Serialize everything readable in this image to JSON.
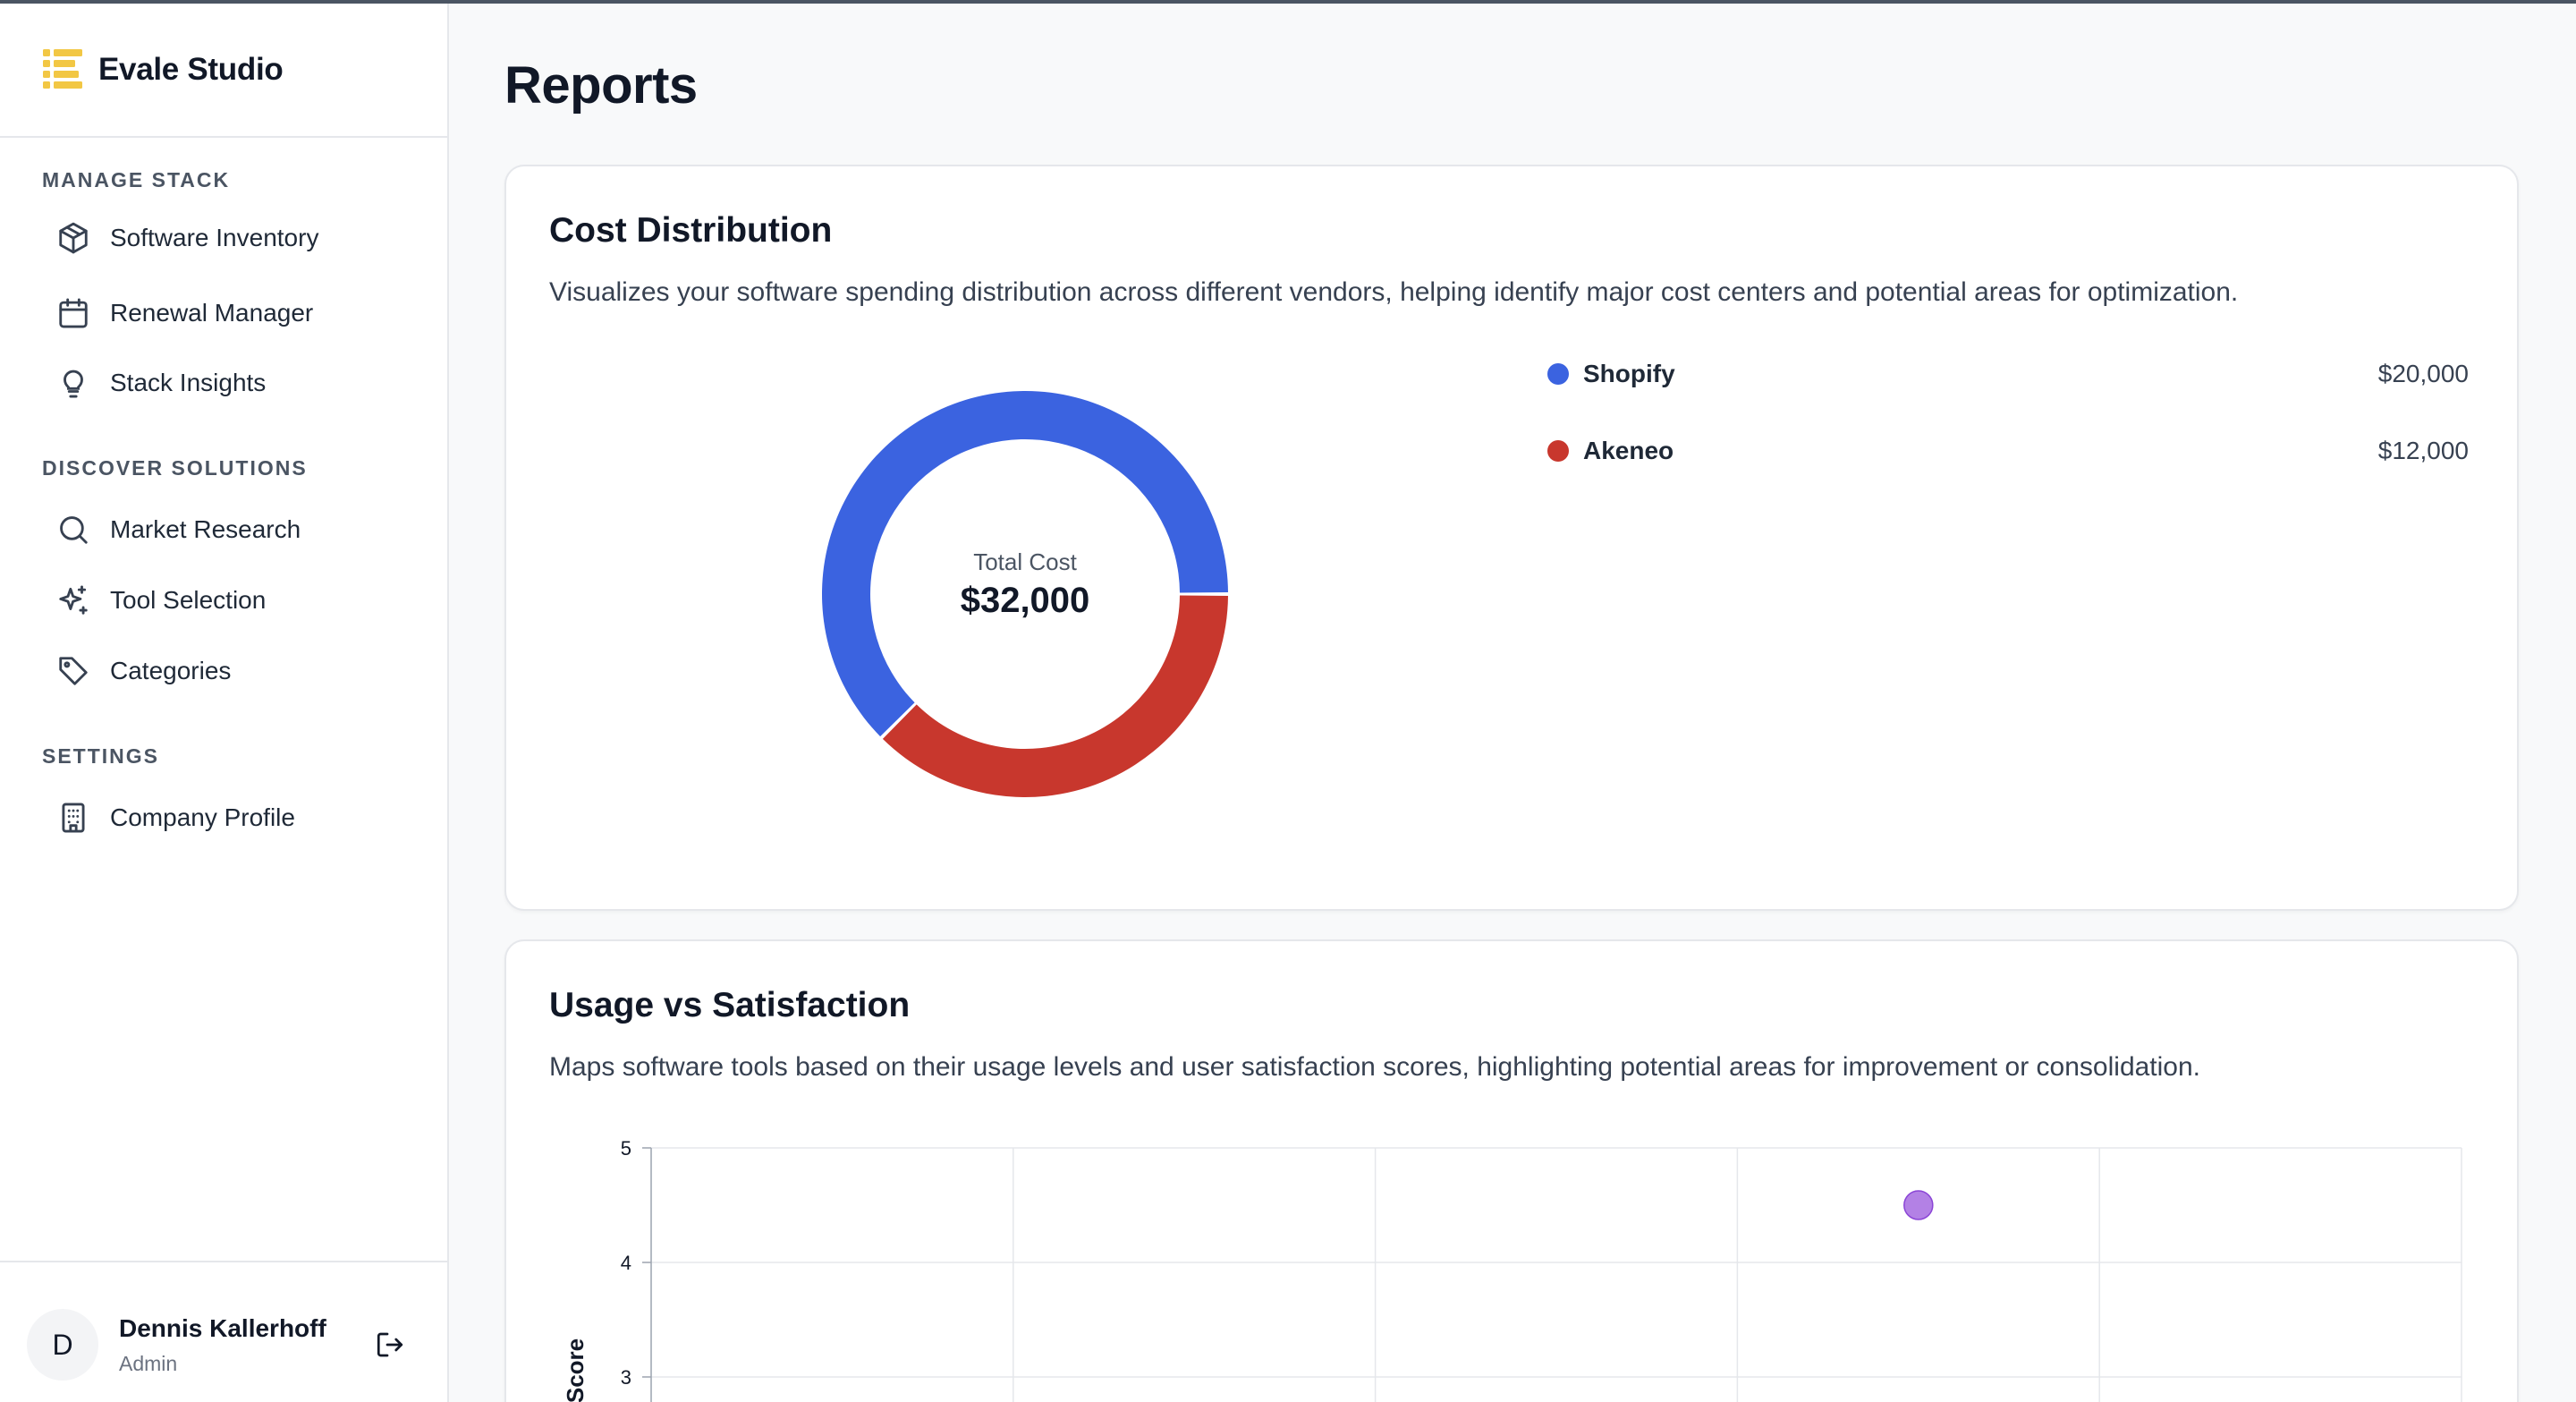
{
  "brand": {
    "name": "Evale Studio",
    "accent": "#f2c744"
  },
  "sidebar": {
    "sections": [
      {
        "title": "MANAGE STACK"
      },
      {
        "title": "DISCOVER SOLUTIONS"
      },
      {
        "title": "SETTINGS"
      }
    ],
    "items": [
      {
        "label": "Software Inventory",
        "icon": "package-icon"
      },
      {
        "label": "Renewal Manager",
        "icon": "calendar-icon"
      },
      {
        "label": "Stack Insights",
        "icon": "lightbulb-icon"
      },
      {
        "label": "Market Research",
        "icon": "search-icon"
      },
      {
        "label": "Tool Selection",
        "icon": "sparkles-icon"
      },
      {
        "label": "Categories",
        "icon": "tag-icon"
      },
      {
        "label": "Company Profile",
        "icon": "building-icon"
      }
    ]
  },
  "user": {
    "initial": "D",
    "name": "Dennis Kallerhoff",
    "role": "Admin"
  },
  "page": {
    "title": "Reports"
  },
  "cost_card": {
    "title": "Cost Distribution",
    "description": "Visualizes your software spending distribution across different vendors, helping identify major cost centers and potential areas for optimization.",
    "center_label": "Total Cost",
    "center_value": "$32,000",
    "legend": [
      {
        "name": "Shopify",
        "value": "$20,000",
        "color": "#3b63e0"
      },
      {
        "name": "Akeneo",
        "value": "$12,000",
        "color": "#c8372d"
      }
    ]
  },
  "usage_card": {
    "title": "Usage vs Satisfaction",
    "description": "Maps software tools based on their usage levels and user satisfaction scores, highlighting potential areas for improvement or consolidation.",
    "ylabel": "Score",
    "y_ticks": [
      "5",
      "4",
      "3"
    ]
  },
  "chart_data": [
    {
      "type": "pie",
      "categories": [
        "Shopify",
        "Akeneo"
      ],
      "values": [
        20000,
        12000
      ],
      "colors": [
        "#3b63e0",
        "#c8372d"
      ],
      "title": "Cost Distribution",
      "center_text": "Total Cost $32,000"
    },
    {
      "type": "scatter",
      "title": "Usage vs Satisfaction",
      "ylabel": "Score",
      "x_gridlines": 5,
      "ylim_visible": [
        3,
        5
      ],
      "series": [
        {
          "x": [
            3.5
          ],
          "y": [
            4.5
          ],
          "color": "#a66be0"
        }
      ]
    }
  ]
}
